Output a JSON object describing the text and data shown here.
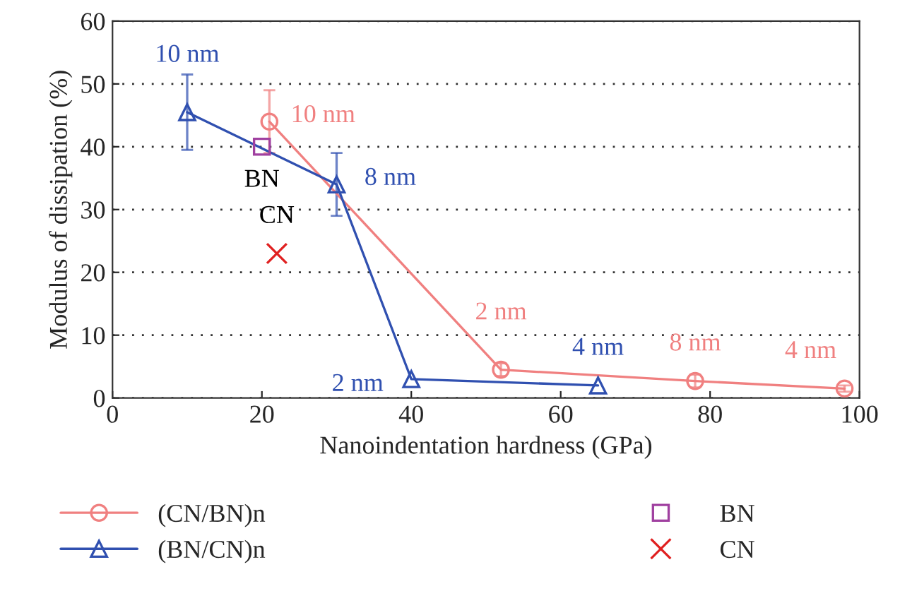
{
  "chart_data": {
    "type": "line",
    "xlabel": "Nanoindentation hardness (GPa)",
    "ylabel": "Modulus of dissipation (%)",
    "xlim": [
      0,
      100
    ],
    "xticks": [
      0,
      20,
      40,
      60,
      80,
      100
    ],
    "ylim": [
      0,
      60
    ],
    "yticks": [
      0,
      10,
      20,
      30,
      40,
      50,
      60
    ],
    "grid": "y",
    "legend": "bottom",
    "line_style": "solid",
    "series": [
      {
        "name": "(CN/BN)n",
        "marker": "circle",
        "color": "#f08080",
        "x": [
          21,
          52,
          78,
          98
        ],
        "values": [
          44,
          4.5,
          2.7,
          1.5
        ],
        "errors": [
          5,
          1,
          1,
          0.5
        ]
      },
      {
        "name": "(BN/CN)n",
        "marker": "triangle",
        "color": "#3050b0",
        "x": [
          10,
          30,
          40,
          65
        ],
        "values": [
          45.5,
          34,
          3,
          2
        ],
        "errors": [
          6,
          5,
          null,
          null
        ]
      },
      {
        "name": "BN",
        "type": "scatter",
        "marker": "square",
        "color": "#a040a0",
        "x": [
          20
        ],
        "values": [
          40
        ]
      },
      {
        "name": "CN",
        "type": "scatter",
        "marker": "cross",
        "color": "#e02020",
        "x": [
          22
        ],
        "values": [
          23
        ]
      }
    ],
    "annotations": [
      {
        "text": "10 nm",
        "x": 10,
        "y": 45.5
      },
      {
        "text": "10 nm",
        "x": 21,
        "y": 44
      },
      {
        "text": "BN",
        "x": 20,
        "y": 40
      },
      {
        "text": "8 nm",
        "x": 30,
        "y": 34
      },
      {
        "text": "CN",
        "x": 22,
        "y": 23
      },
      {
        "text": "2 nm",
        "x": 40,
        "y": 3
      },
      {
        "text": "2 nm",
        "x": 52,
        "y": 4.5
      },
      {
        "text": "4 nm",
        "x": 65,
        "y": 2
      },
      {
        "text": "8 nm",
        "x": 78,
        "y": 2.7
      },
      {
        "text": "4 nm",
        "x": 98,
        "y": 1.5
      }
    ]
  }
}
